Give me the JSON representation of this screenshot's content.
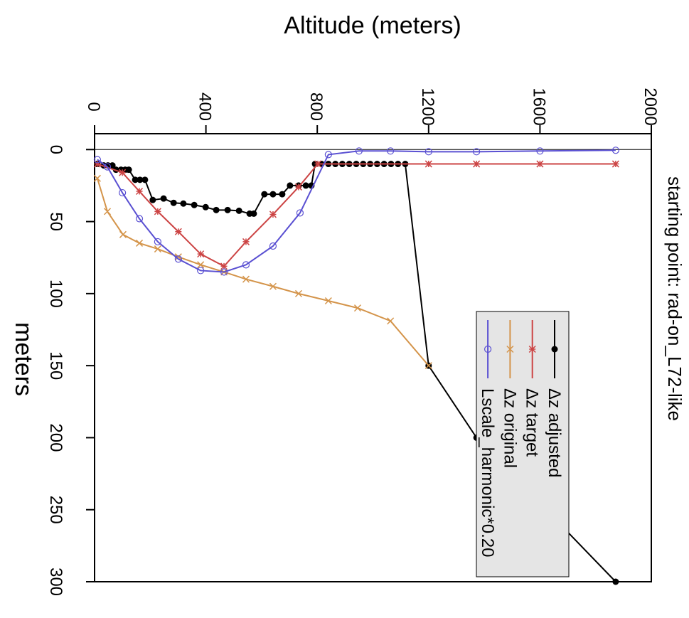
{
  "chart_data": {
    "type": "line",
    "title": "starting point: rad-on_L72-like",
    "x_label": "Altitude (meters)",
    "y_label": "meters",
    "xlim": [
      0,
      2000
    ],
    "xticks": [
      0,
      400,
      800,
      1200,
      1600,
      2000
    ],
    "ylim": [
      -11,
      300
    ],
    "yticks": [
      0,
      50,
      100,
      150,
      200,
      250,
      300
    ],
    "y_inverted": true,
    "rotated": true,
    "series": [
      {
        "name": "Δz adjusted",
        "color": "#000000",
        "marker": "filled-circle",
        "x": [
          10,
          33,
          48,
          64,
          77,
          95,
          110,
          123,
          146,
          163,
          181,
          209,
          248,
          284,
          319,
          358,
          399,
          437,
          478,
          519,
          557,
          572,
          610,
          641,
          674,
          702,
          733,
          759,
          779,
          792,
          815,
          840,
          865,
          890,
          915,
          940,
          965,
          990,
          1015,
          1040,
          1065,
          1090,
          1116,
          1200,
          1372,
          1872
        ],
        "values": [
          10,
          11,
          11,
          11,
          14,
          14,
          14,
          14,
          21,
          21,
          21,
          35,
          34,
          37,
          37.5,
          38.5,
          40,
          42,
          42,
          42.5,
          44.5,
          44.5,
          31,
          31,
          31,
          25,
          25,
          25,
          25,
          10,
          10,
          10,
          10,
          10,
          10,
          10,
          10,
          10,
          10,
          10,
          10,
          10,
          10,
          150,
          200,
          300
        ]
      },
      {
        "name": "Δz target",
        "color": "#cc4444",
        "marker": "star",
        "x": [
          10,
          100,
          161,
          227,
          301,
          381,
          465,
          544,
          641,
          733,
          802,
          1200,
          1372,
          1600,
          1872
        ],
        "values": [
          10,
          16,
          29,
          43,
          57,
          72.5,
          81,
          64,
          45,
          26,
          10,
          10,
          10,
          10,
          10
        ]
      },
      {
        "name": "Δz original",
        "color": "#d4944a",
        "marker": "cross",
        "x": [
          10,
          46,
          102,
          161,
          227,
          301,
          381,
          465,
          544,
          641,
          733,
          840,
          945,
          1063,
          1200
        ],
        "values": [
          20,
          43,
          59,
          65,
          69,
          74.5,
          80,
          85,
          90,
          95,
          100,
          105,
          110,
          119,
          150
        ]
      },
      {
        "name": "Lscale_harmonic*0.20",
        "color": "#5a50d2",
        "marker": "open-circle",
        "x": [
          10,
          46,
          100,
          161,
          227,
          301,
          381,
          465,
          544,
          641,
          738,
          840,
          950,
          1063,
          1200,
          1372,
          1600,
          1872
        ],
        "values": [
          7,
          12,
          30,
          48,
          64,
          76,
          84,
          85,
          80,
          67,
          44,
          3.5,
          1,
          1,
          1.5,
          1.5,
          1,
          0.5
        ]
      }
    ]
  }
}
